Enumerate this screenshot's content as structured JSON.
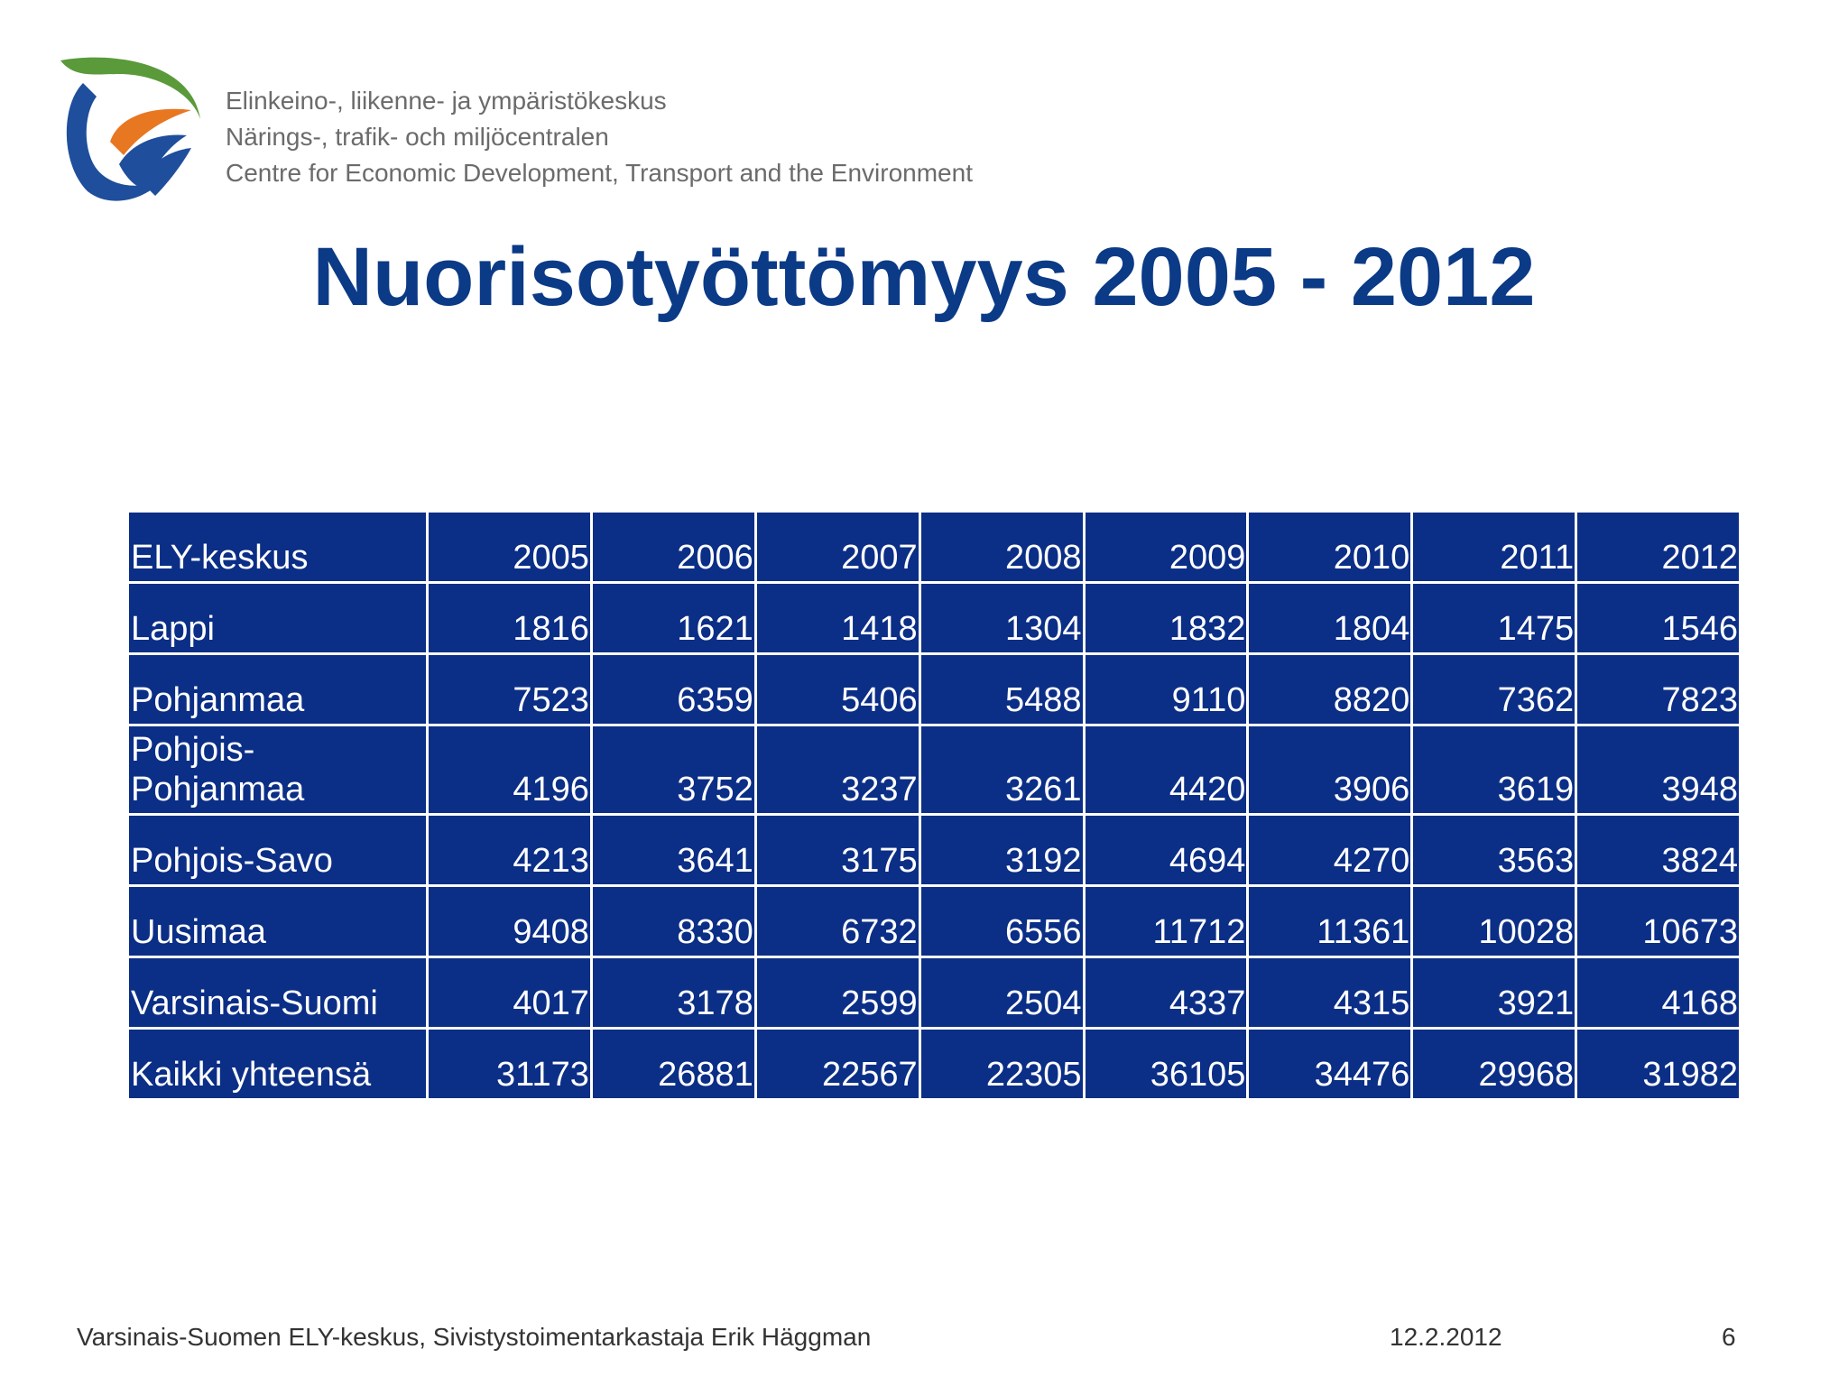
{
  "header": {
    "org_lines": [
      "Elinkeino-, liikenne- ja ympäristökeskus",
      "Närings-, trafik- och miljöcentralen",
      "Centre for Economic Development, Transport and the Environment"
    ],
    "logo_colors": {
      "green": "#5a9a3a",
      "orange": "#e87722",
      "blue": "#1f4e9c"
    }
  },
  "title": "Nuorisotyöttömyys 2005 - 2012",
  "table": {
    "headers": [
      "ELY-keskus",
      "2005",
      "2006",
      "2007",
      "2008",
      "2009",
      "2010",
      "2011",
      "2012"
    ],
    "rows": [
      {
        "label": "Lappi",
        "values": [
          "1816",
          "1621",
          "1418",
          "1304",
          "1832",
          "1804",
          "1475",
          "1546"
        ]
      },
      {
        "label": "Pohjanmaa",
        "values": [
          "7523",
          "6359",
          "5406",
          "5488",
          "9110",
          "8820",
          "7362",
          "7823"
        ]
      },
      {
        "label": "Pohjois-Pohjanmaa",
        "values": [
          "4196",
          "3752",
          "3237",
          "3261",
          "4420",
          "3906",
          "3619",
          "3948"
        ]
      },
      {
        "label": "Pohjois-Savo",
        "values": [
          "4213",
          "3641",
          "3175",
          "3192",
          "4694",
          "4270",
          "3563",
          "3824"
        ]
      },
      {
        "label": "Uusimaa",
        "values": [
          "9408",
          "8330",
          "6732",
          "6556",
          "11712",
          "11361",
          "10028",
          "10673"
        ]
      },
      {
        "label": "Varsinais-Suomi",
        "values": [
          "4017",
          "3178",
          "2599",
          "2504",
          "4337",
          "4315",
          "3921",
          "4168"
        ]
      },
      {
        "label": "Kaikki yhteensä",
        "values": [
          "31173",
          "26881",
          "22567",
          "22305",
          "36105",
          "34476",
          "29968",
          "31982"
        ]
      }
    ]
  },
  "footer": {
    "source": "Varsinais-Suomen ELY-keskus, Sivistystoimentarkastaja Erik Häggman",
    "date": "12.2.2012",
    "page": "6"
  }
}
